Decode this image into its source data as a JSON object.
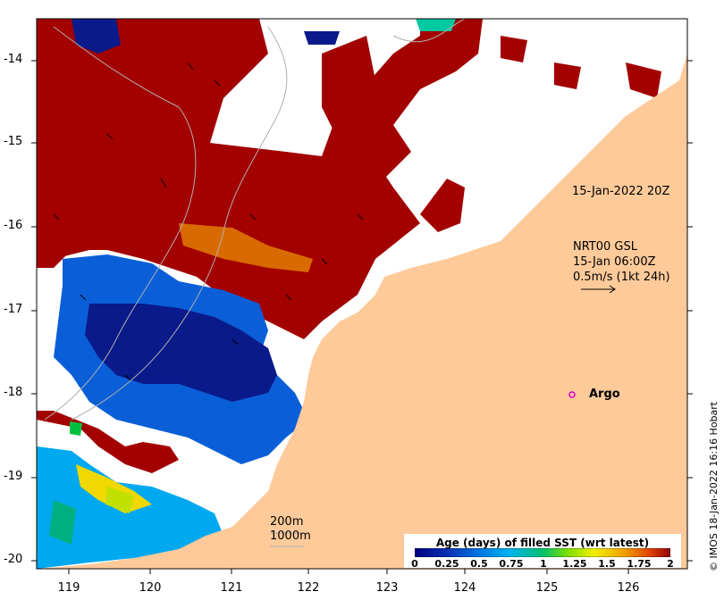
{
  "map": {
    "lon_ticks": [
      "119",
      "120",
      "121",
      "122",
      "123",
      "124",
      "125",
      "126"
    ],
    "lat_ticks": [
      "-14",
      "-15",
      "-16",
      "-17",
      "-18",
      "-19",
      "-20"
    ],
    "colors": {
      "land": "#FECA9A",
      "sst_old": "#A30000",
      "sst_mid": "#0A4FC8",
      "sst_new": "#0A1A8A",
      "ocean_no_data": "#FFFFFF"
    }
  },
  "annotations": {
    "snapshot_time": "15-Jan-2022 20Z",
    "current_source": "NRT00 GSL",
    "current_time": "15-Jan 06:00Z",
    "current_scale": "0.5m/s (1kt 24h)",
    "argo_label": "Argo",
    "isobath_200": "200m",
    "isobath_1000": "1000m"
  },
  "legend": {
    "title": "Age (days) of filled SST (wrt latest)",
    "ticks": [
      "0",
      "0.25",
      "0.5",
      "0.75",
      "1",
      "1.25",
      "1.5",
      "1.75",
      "2"
    ]
  },
  "credit": "© IMOS 18-Jan-2022 16:16 Hobart"
}
